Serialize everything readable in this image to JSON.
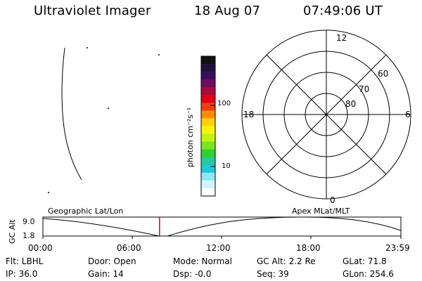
{
  "header": {
    "instrument": "Ultraviolet Imager",
    "date": "18 Aug 07",
    "time": "07:49:06 UT"
  },
  "colorbar": {
    "unit_label": "photon cm⁻²s⁻¹",
    "tick_upper": "100",
    "tick_lower": "10",
    "colors": [
      "#101010",
      "#22103c",
      "#3a0d5c",
      "#6b0f5f",
      "#a80b3d",
      "#e0001a",
      "#f03e0f",
      "#fa8a0a",
      "#ffd10d",
      "#f3f30f",
      "#bff314",
      "#78e51f",
      "#31d12f",
      "#24c9a2",
      "#1ec9d8",
      "#8fe7f0",
      "#d3f5f8",
      "#ffffff"
    ]
  },
  "polar_plot": {
    "labels": {
      "top": "12",
      "bottom": "0",
      "left": "18",
      "right": "6"
    },
    "ring_labels": [
      "60",
      "70",
      "80"
    ]
  },
  "ephemeris": {
    "left_label": "Geographic Lat/Lon",
    "right_label": "Apex MLat/MLT",
    "axis_label": "GC Alt",
    "y_top": "9.0",
    "y_bottom": "1.8",
    "x_ticks": [
      "00:00",
      "06:00",
      "12:00",
      "18:00",
      "23:59"
    ],
    "marker_hour": 7.8183
  },
  "status": {
    "row1": {
      "flt": "Flt: LBHL",
      "door": "Door: Open",
      "mode": "Mode: Normal",
      "gc_alt": "GC Alt: 2.2 Re",
      "glat": "GLat:  71.8"
    },
    "row2": {
      "ip": "IP: 36.0",
      "gain": "Gain: 14",
      "dsp": "Dsp:   -0.0",
      "seq": "Seq: 39",
      "glon": "GLon: 254.6"
    }
  }
}
